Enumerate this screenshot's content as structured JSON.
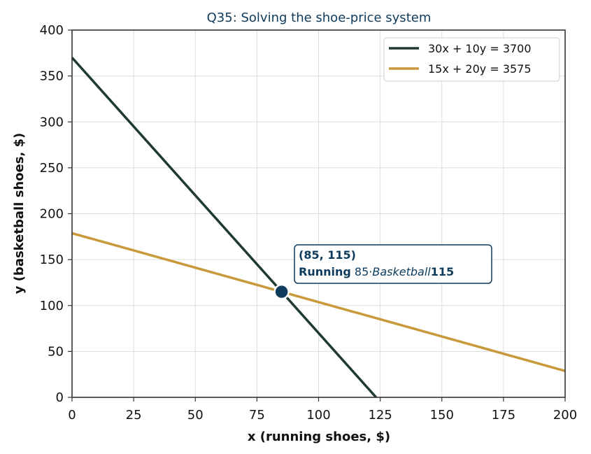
{
  "chart_data": {
    "type": "line",
    "title": "Q35: Solving the shoe-price system",
    "xlabel": "x  (running shoes, $)",
    "ylabel": "y  (basketball shoes, $)",
    "xlim": [
      0,
      200
    ],
    "ylim": [
      0,
      400
    ],
    "xticks": [
      0,
      25,
      50,
      75,
      100,
      125,
      150,
      175,
      200
    ],
    "yticks": [
      0,
      50,
      100,
      150,
      200,
      250,
      300,
      350,
      400
    ],
    "grid": true,
    "legend_position": "top-right",
    "series": [
      {
        "name": "30x + 10y = 3700",
        "color": "#1f3a2e",
        "x": [
          0,
          123.333
        ],
        "y": [
          370,
          0
        ]
      },
      {
        "name": "15x + 20y = 3575",
        "color": "#c8993a",
        "x": [
          0,
          200
        ],
        "y": [
          178.75,
          28.75
        ]
      }
    ],
    "intersection": {
      "x": 85,
      "y": 115,
      "color": "#0e3b5c",
      "label_line1": "(85, 115)",
      "label_line2_a": "Running",
      "label_line2_b": " 85·",
      "label_line2_c": "Basketball",
      "label_line2_d": "115"
    }
  }
}
